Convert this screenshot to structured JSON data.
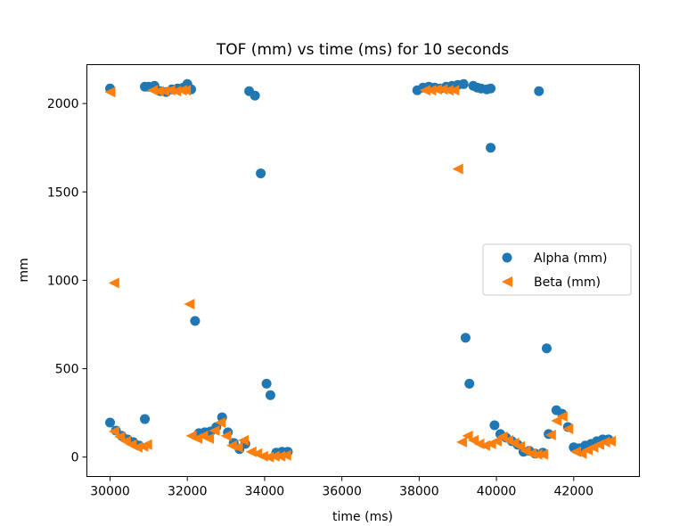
{
  "chart_data": {
    "type": "scatter",
    "title": "TOF (mm) vs time (ms) for 10 seconds",
    "xlabel": "time (ms)",
    "ylabel": "mm",
    "xlim": [
      29400,
      43700
    ],
    "ylim": [
      -110,
      2220
    ],
    "xticks": [
      30000,
      32000,
      34000,
      36000,
      38000,
      40000,
      42000
    ],
    "yticks": [
      0,
      500,
      1000,
      1500,
      2000
    ],
    "grid": false,
    "legend_position": "center-right",
    "series": [
      {
        "name": "Alpha (mm)",
        "marker": "circle",
        "color": "#1f77b4",
        "points": [
          [
            30000,
            2085
          ],
          [
            30900,
            2095
          ],
          [
            31000,
            2095
          ],
          [
            31150,
            2100
          ],
          [
            31300,
            2070
          ],
          [
            31450,
            2065
          ],
          [
            31600,
            2080
          ],
          [
            31750,
            2085
          ],
          [
            31900,
            2090
          ],
          [
            32000,
            2110
          ],
          [
            32100,
            2080
          ],
          [
            33600,
            2070
          ],
          [
            33750,
            2045
          ],
          [
            37950,
            2075
          ],
          [
            38100,
            2090
          ],
          [
            38250,
            2095
          ],
          [
            38400,
            2090
          ],
          [
            38550,
            2085
          ],
          [
            38700,
            2095
          ],
          [
            38850,
            2100
          ],
          [
            39000,
            2105
          ],
          [
            39150,
            2110
          ],
          [
            39400,
            2100
          ],
          [
            39500,
            2090
          ],
          [
            39600,
            2085
          ],
          [
            39750,
            2080
          ],
          [
            39850,
            2085
          ],
          [
            41100,
            2070
          ],
          [
            39850,
            1750
          ],
          [
            33900,
            1605
          ],
          [
            32200,
            770
          ],
          [
            39200,
            675
          ],
          [
            41300,
            615
          ],
          [
            34050,
            415
          ],
          [
            34150,
            350
          ],
          [
            39300,
            415
          ],
          [
            30000,
            195
          ],
          [
            30150,
            150
          ],
          [
            30300,
            120
          ],
          [
            30450,
            100
          ],
          [
            30600,
            85
          ],
          [
            30750,
            65
          ],
          [
            30900,
            215
          ],
          [
            32300,
            135
          ],
          [
            32450,
            140
          ],
          [
            32600,
            145
          ],
          [
            32750,
            170
          ],
          [
            32900,
            225
          ],
          [
            33050,
            140
          ],
          [
            33200,
            80
          ],
          [
            33350,
            45
          ],
          [
            33500,
            75
          ],
          [
            34300,
            25
          ],
          [
            34450,
            30
          ],
          [
            34600,
            30
          ],
          [
            39950,
            180
          ],
          [
            40100,
            130
          ],
          [
            40250,
            110
          ],
          [
            40400,
            90
          ],
          [
            40550,
            70
          ],
          [
            40700,
            30
          ],
          [
            40850,
            35
          ],
          [
            41000,
            20
          ],
          [
            41200,
            25
          ],
          [
            41350,
            130
          ],
          [
            41550,
            265
          ],
          [
            41700,
            245
          ],
          [
            41850,
            170
          ],
          [
            42000,
            55
          ],
          [
            42150,
            50
          ],
          [
            42300,
            65
          ],
          [
            42450,
            75
          ],
          [
            42600,
            90
          ],
          [
            42750,
            100
          ],
          [
            42900,
            100
          ]
        ]
      },
      {
        "name": "Beta (mm)",
        "marker": "triangle-left",
        "color": "#ff7f0e",
        "points": [
          [
            30000,
            2065
          ],
          [
            31100,
            2075
          ],
          [
            31250,
            2070
          ],
          [
            31400,
            2070
          ],
          [
            31550,
            2075
          ],
          [
            31700,
            2070
          ],
          [
            31850,
            2075
          ],
          [
            31950,
            2075
          ],
          [
            38150,
            2075
          ],
          [
            38300,
            2075
          ],
          [
            38450,
            2080
          ],
          [
            38600,
            2080
          ],
          [
            38750,
            2075
          ],
          [
            38900,
            2075
          ],
          [
            39000,
            1630
          ],
          [
            30100,
            985
          ],
          [
            32050,
            865
          ],
          [
            30100,
            145
          ],
          [
            30250,
            115
          ],
          [
            30400,
            90
          ],
          [
            30550,
            70
          ],
          [
            30700,
            55
          ],
          [
            30850,
            60
          ],
          [
            30950,
            70
          ],
          [
            32100,
            120
          ],
          [
            32250,
            105
          ],
          [
            32400,
            120
          ],
          [
            32550,
            105
          ],
          [
            32700,
            150
          ],
          [
            32850,
            195
          ],
          [
            33000,
            120
          ],
          [
            33150,
            65
          ],
          [
            33300,
            55
          ],
          [
            33450,
            95
          ],
          [
            33650,
            30
          ],
          [
            33800,
            20
          ],
          [
            33950,
            5
          ],
          [
            34100,
            0
          ],
          [
            34250,
            5
          ],
          [
            34400,
            5
          ],
          [
            34550,
            10
          ],
          [
            39100,
            85
          ],
          [
            39250,
            120
          ],
          [
            39400,
            95
          ],
          [
            39550,
            75
          ],
          [
            39700,
            65
          ],
          [
            39850,
            75
          ],
          [
            40000,
            90
          ],
          [
            40150,
            115
          ],
          [
            40300,
            95
          ],
          [
            40450,
            80
          ],
          [
            40600,
            60
          ],
          [
            40750,
            35
          ],
          [
            40900,
            20
          ],
          [
            41050,
            15
          ],
          [
            41200,
            15
          ],
          [
            41400,
            125
          ],
          [
            41550,
            205
          ],
          [
            41700,
            230
          ],
          [
            41850,
            160
          ],
          [
            42050,
            30
          ],
          [
            42200,
            20
          ],
          [
            42350,
            40
          ],
          [
            42500,
            55
          ],
          [
            42650,
            70
          ],
          [
            42800,
            85
          ],
          [
            42950,
            90
          ]
        ]
      }
    ]
  }
}
